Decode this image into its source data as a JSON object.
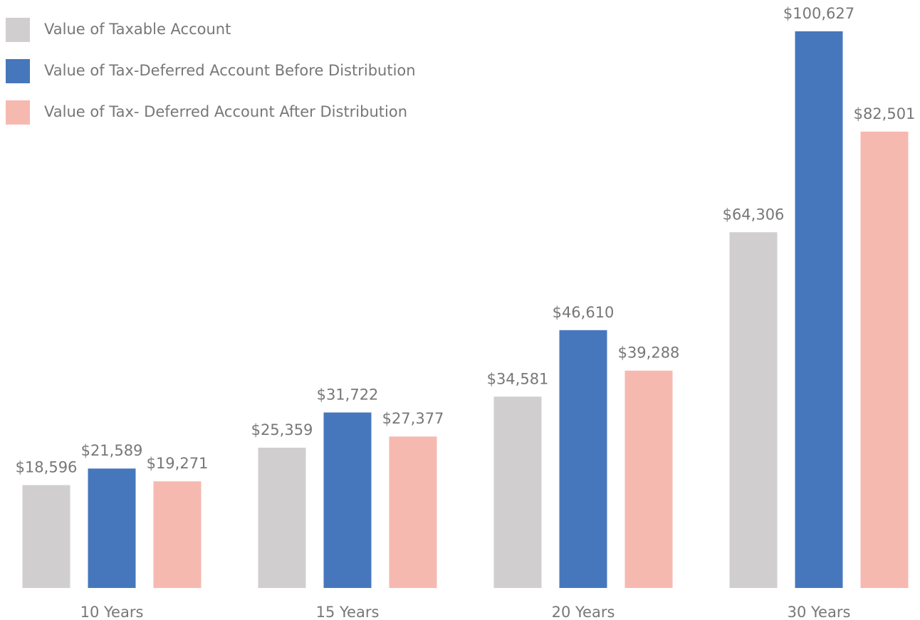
{
  "chart_data": {
    "type": "bar",
    "categories": [
      "10 Years",
      "15 Years",
      "20 Years",
      "30 Years"
    ],
    "series": [
      {
        "name": "Value of Taxable Account",
        "color": "#d0cecf",
        "values": [
          18596,
          25359,
          34581,
          64306
        ],
        "value_labels": [
          "$18,596",
          "$25,359",
          "$34,581",
          "$64,306"
        ]
      },
      {
        "name": "Value of Tax-Deferred Account Before Distribution",
        "color": "#4677bd",
        "values": [
          21589,
          31722,
          46610,
          100627
        ],
        "value_labels": [
          "$21,589",
          "$31,722",
          "$46,610",
          "$100,627"
        ]
      },
      {
        "name": "Value of Tax- Deferred Account After Distribution",
        "color": "#f6b9b0",
        "values": [
          19271,
          27377,
          39288,
          82501
        ],
        "value_labels": [
          "$19,271",
          "$27,377",
          "$39,288",
          "$82,501"
        ]
      }
    ],
    "legend": "upper left"
  }
}
